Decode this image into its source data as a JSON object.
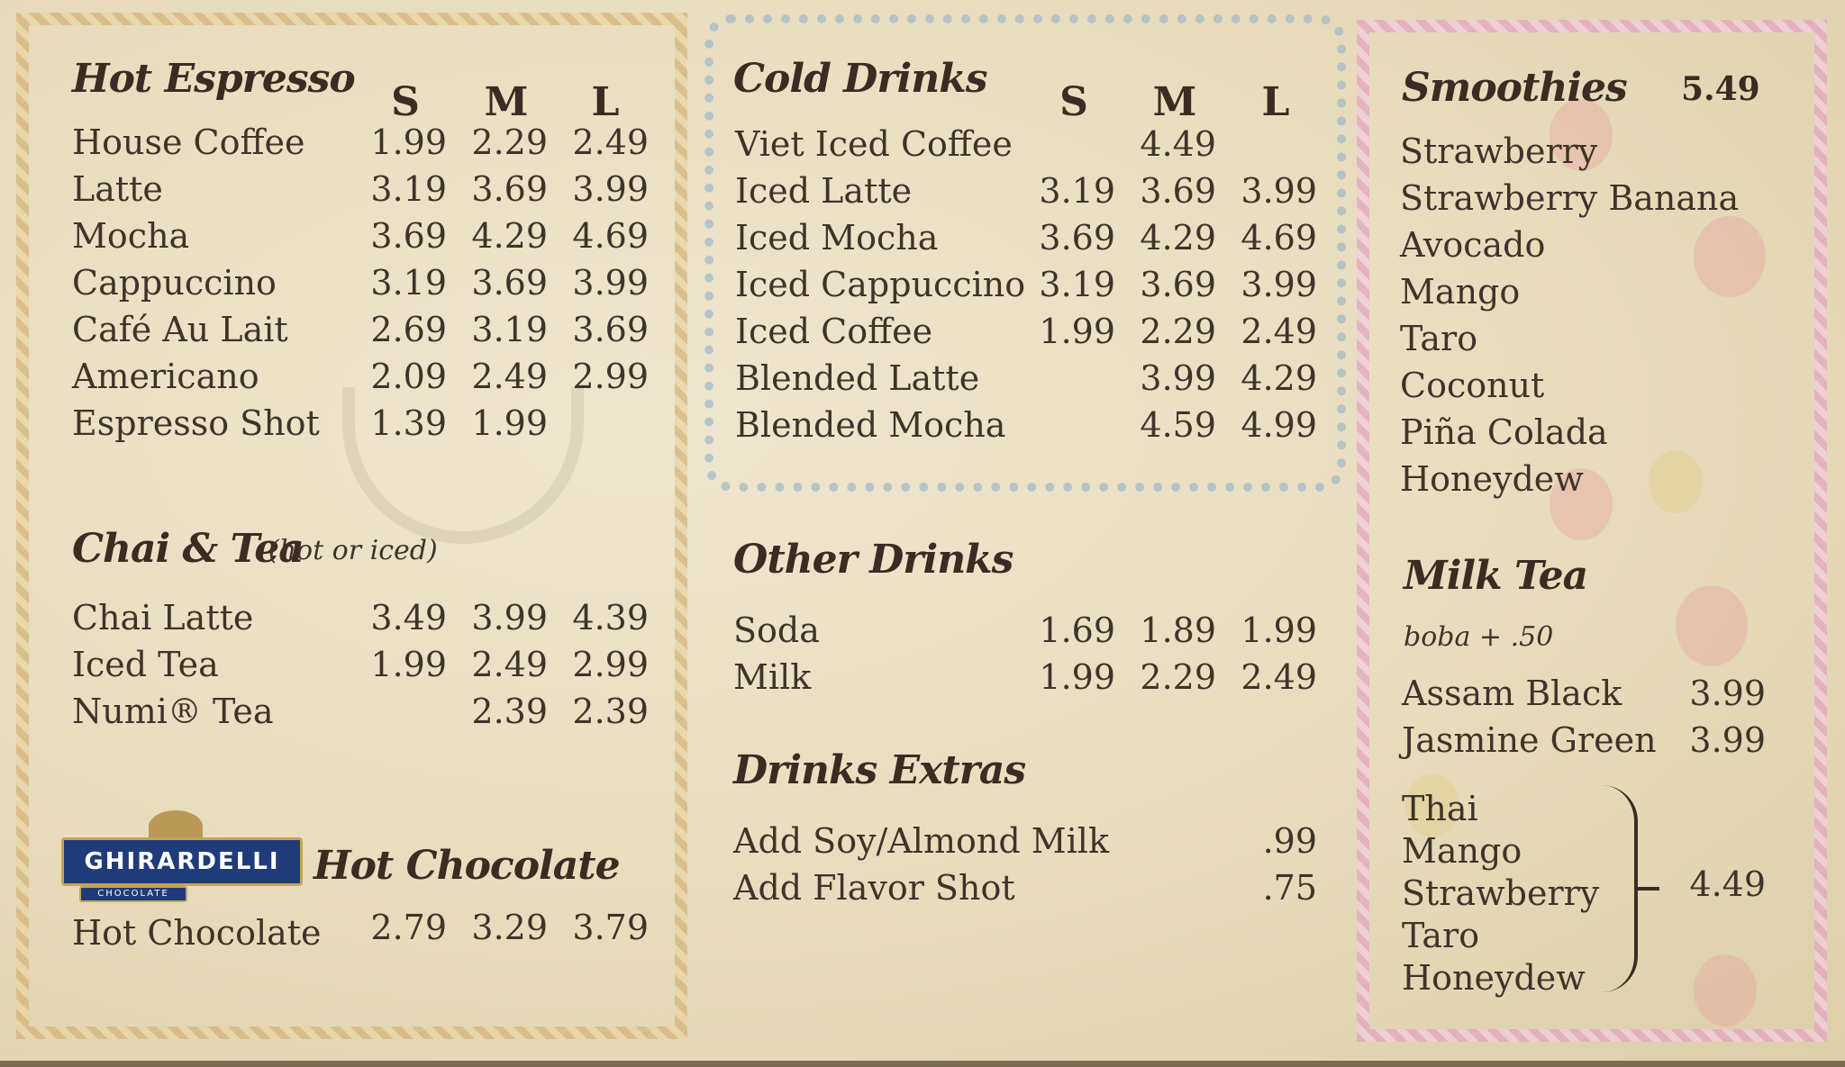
{
  "hot_espresso": {
    "title": "Hot Espresso",
    "sizes": [
      "S",
      "M",
      "L"
    ],
    "items": [
      {
        "name": "House Coffee",
        "s": "1.99",
        "m": "2.29",
        "l": "2.49"
      },
      {
        "name": "Latte",
        "s": "3.19",
        "m": "3.69",
        "l": "3.99"
      },
      {
        "name": "Mocha",
        "s": "3.69",
        "m": "4.29",
        "l": "4.69"
      },
      {
        "name": "Cappuccino",
        "s": "3.19",
        "m": "3.69",
        "l": "3.99"
      },
      {
        "name": "Café Au Lait",
        "s": "2.69",
        "m": "3.19",
        "l": "3.69"
      },
      {
        "name": "Americano",
        "s": "2.09",
        "m": "2.49",
        "l": "2.99"
      },
      {
        "name": "Espresso Shot",
        "s": "1.39",
        "m": "1.99",
        "l": ""
      }
    ]
  },
  "chai_tea": {
    "title": "Chai & Tea",
    "note": "(hot or iced)",
    "items": [
      {
        "name": "Chai Latte",
        "s": "3.49",
        "m": "3.99",
        "l": "4.39"
      },
      {
        "name": "Iced Tea",
        "s": "1.99",
        "m": "2.49",
        "l": "2.99"
      },
      {
        "name": "Numi® Tea",
        "s": "",
        "m": "2.39",
        "l": "2.39"
      }
    ]
  },
  "hot_chocolate": {
    "brand": "GHIRARDELLI",
    "brand_sub": "CHOCOLATE",
    "title": "Hot Chocolate",
    "items": [
      {
        "name": "Hot Chocolate",
        "s": "2.79",
        "m": "3.29",
        "l": "3.79"
      }
    ]
  },
  "cold_drinks": {
    "title": "Cold Drinks",
    "sizes": [
      "S",
      "M",
      "L"
    ],
    "items": [
      {
        "name": "Viet Iced Coffee",
        "s": "",
        "m": "4.49",
        "l": ""
      },
      {
        "name": "Iced Latte",
        "s": "3.19",
        "m": "3.69",
        "l": "3.99"
      },
      {
        "name": "Iced Mocha",
        "s": "3.69",
        "m": "4.29",
        "l": "4.69"
      },
      {
        "name": "Iced Cappuccino",
        "s": "3.19",
        "m": "3.69",
        "l": "3.99"
      },
      {
        "name": "Iced Coffee",
        "s": "1.99",
        "m": "2.29",
        "l": "2.49"
      },
      {
        "name": "Blended Latte",
        "s": "",
        "m": "3.99",
        "l": "4.29"
      },
      {
        "name": "Blended Mocha",
        "s": "",
        "m": "4.59",
        "l": "4.99"
      }
    ]
  },
  "other_drinks": {
    "title": "Other Drinks",
    "items": [
      {
        "name": "Soda",
        "s": "1.69",
        "m": "1.89",
        "l": "1.99"
      },
      {
        "name": "Milk",
        "s": "1.99",
        "m": "2.29",
        "l": "2.49"
      }
    ]
  },
  "drinks_extras": {
    "title": "Drinks Extras",
    "items": [
      {
        "name": "Add Soy/Almond Milk",
        "price": ".99"
      },
      {
        "name": "Add Flavor Shot",
        "price": ".75"
      }
    ]
  },
  "smoothies": {
    "title": "Smoothies",
    "price": "5.49",
    "items": [
      "Strawberry",
      "Strawberry Banana",
      "Avocado",
      "Mango",
      "Taro",
      "Coconut",
      "Piña Colada",
      "Honeydew"
    ]
  },
  "milk_tea": {
    "title": "Milk Tea",
    "note": "boba + .50",
    "items": [
      {
        "name": "Assam Black",
        "price": "3.99"
      },
      {
        "name": "Jasmine Green",
        "price": "3.99"
      }
    ],
    "group_items": [
      "Thai",
      "Mango",
      "Strawberry",
      "Taro",
      "Honeydew"
    ],
    "group_price": "4.49"
  },
  "colors": {
    "background": "#e8dcbd",
    "text": "#3b3128",
    "left_border": "#d6b57a",
    "mid_border": "#9fb9c9",
    "right_border": "#e6a9c2",
    "logo_blue": "#203b7a"
  }
}
